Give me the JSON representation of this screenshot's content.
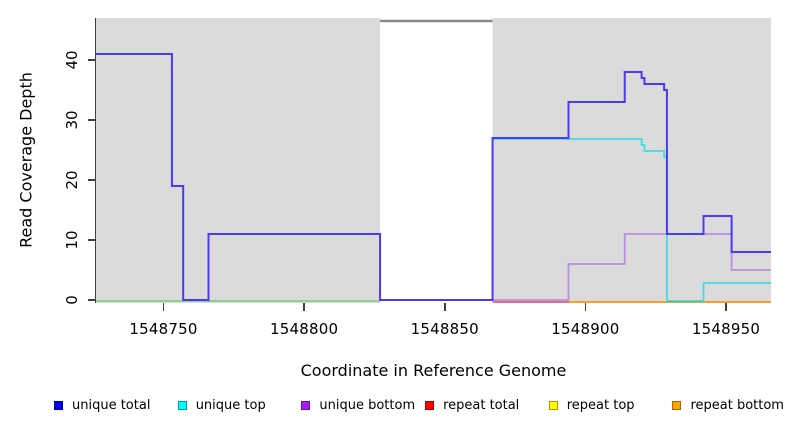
{
  "figure": {
    "xlabel": "Coordinate in Reference Genome",
    "ylabel": "Read Coverage Depth"
  },
  "chart_data": {
    "type": "line",
    "subtype": "step-coverage",
    "title": "",
    "xlabel": "Coordinate in Reference Genome",
    "ylabel": "Read Coverage Depth",
    "x_range": [
      1548726,
      1548966
    ],
    "y_range": [
      0,
      47
    ],
    "grid": "off",
    "legend_position": "bottom",
    "plot_background": "#DBDBDB",
    "axis_color": "#404040",
    "masked_region": {
      "start": 1548827,
      "end": 1548867,
      "fill": "#FFFFFF",
      "top_marker": {
        "value": 46.5,
        "color": "#8A8A8A",
        "width": 2.5
      }
    },
    "x_ticks": [
      {
        "value": 1548750,
        "label": "1548750"
      },
      {
        "value": 1548800,
        "label": "1548800"
      },
      {
        "value": 1548850,
        "label": "1548850"
      },
      {
        "value": 1548900,
        "label": "1548900"
      },
      {
        "value": 1548950,
        "label": "1548950"
      }
    ],
    "y_ticks": [
      {
        "value": 0,
        "label": "0"
      },
      {
        "value": 10,
        "label": "10"
      },
      {
        "value": 20,
        "label": "20"
      },
      {
        "value": 30,
        "label": "30"
      },
      {
        "value": 40,
        "label": "40"
      }
    ],
    "series": [
      {
        "key": "baseline-left",
        "name": "zero coverage baseline (left region)",
        "color": "#7CC87C",
        "width": 1.6,
        "dy": 1,
        "steps": [
          [
            1548726,
            0
          ]
        ],
        "end": 1548827
      },
      {
        "key": "repeat-total",
        "name": "repeat total",
        "color": "#E25F7D",
        "width": 1.8,
        "dy": 2,
        "steps": [
          [
            1548867,
            0
          ]
        ],
        "end": 1548894
      },
      {
        "key": "repeat-bottom",
        "name": "repeat bottom",
        "color": "#FF9E20",
        "width": 2,
        "dy": 2,
        "steps": [
          [
            1548894,
            0
          ]
        ],
        "end": 1548966
      },
      {
        "key": "unique-bottom",
        "name": "unique bottom",
        "color": "#BB8DE4",
        "width": 1.8,
        "dy": 0,
        "steps": [
          [
            1548867,
            0
          ],
          [
            1548894,
            6
          ],
          [
            1548914,
            11
          ],
          [
            1548952,
            5
          ]
        ],
        "end": 1548966
      },
      {
        "key": "unique-top",
        "name": "unique top",
        "color": "#3EDCE6",
        "width": 1.8,
        "dy": 1,
        "steps": [
          [
            1548867,
            27
          ],
          [
            1548920,
            26
          ],
          [
            1548921,
            25
          ],
          [
            1548928,
            24
          ],
          [
            1548929,
            0
          ],
          [
            1548942,
            3
          ]
        ],
        "end": 1548966
      },
      {
        "key": "unique-top-zero-overlap",
        "name": "unique top at zero over repeat bottom",
        "color": "#5BC392",
        "width": 1.6,
        "dy": 1.5,
        "steps": [
          [
            1548929,
            0
          ]
        ],
        "end": 1548942
      },
      {
        "key": "unique-total",
        "name": "unique total",
        "color": "#4B3BF0",
        "width": 2,
        "dy": 0,
        "steps": [
          [
            1548726,
            41
          ],
          [
            1548753,
            19
          ],
          [
            1548757,
            0
          ],
          [
            1548766,
            11
          ],
          [
            1548827,
            0
          ],
          [
            1548867,
            27
          ],
          [
            1548894,
            33
          ],
          [
            1548914,
            38
          ],
          [
            1548920,
            37
          ],
          [
            1548921,
            36
          ],
          [
            1548928,
            35
          ],
          [
            1548929,
            11
          ],
          [
            1548942,
            14
          ],
          [
            1548952,
            8
          ]
        ],
        "end": 1548966
      }
    ],
    "legend": [
      {
        "label": "unique total",
        "fill": "#0000F0",
        "border": "#0000A0"
      },
      {
        "label": "unique top",
        "fill": "#00FFFF",
        "border": "#009CA8"
      },
      {
        "label": "unique bottom",
        "fill": "#A020F0",
        "border": "#6A11A0"
      },
      {
        "label": "repeat total",
        "fill": "#FF0000",
        "border": "#A00000"
      },
      {
        "label": "repeat top",
        "fill": "#FFFF00",
        "border": "#A0A000"
      },
      {
        "label": "repeat bottom",
        "fill": "#FFA500",
        "border": "#A06A00"
      }
    ]
  }
}
